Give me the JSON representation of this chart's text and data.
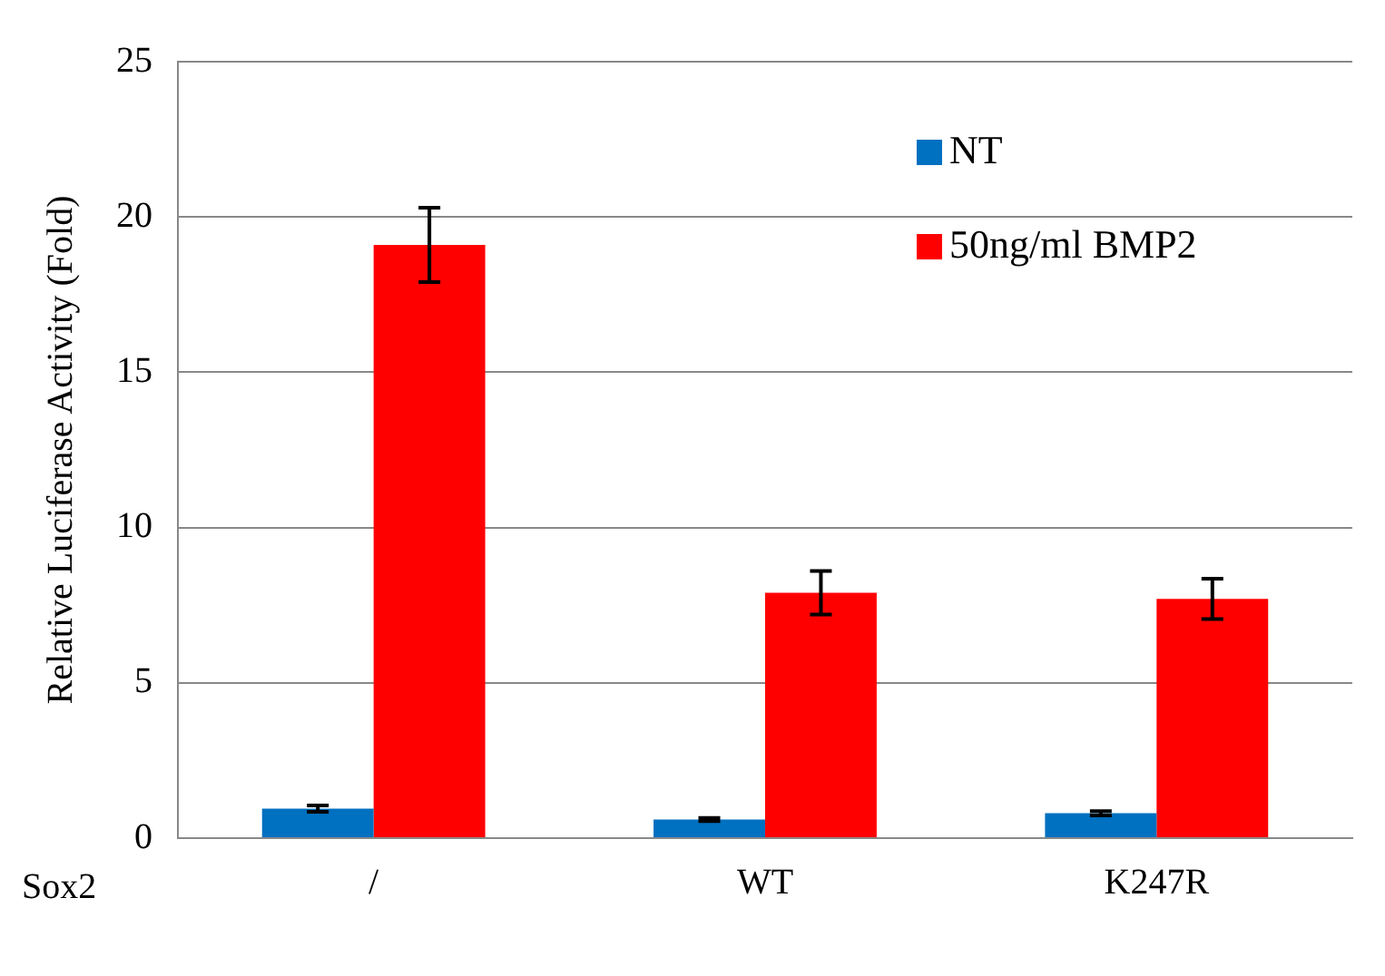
{
  "chart_data": {
    "type": "bar",
    "ylabel": "Relative Luciferase Activity (Fold)",
    "categories": [
      "/",
      "WT",
      "K247R"
    ],
    "series": [
      {
        "name": "NT",
        "color": "#0070c0",
        "values": [
          0.95,
          0.6,
          0.8
        ],
        "errors": [
          0.1,
          0.05,
          0.07
        ]
      },
      {
        "name": "50ng/ml BMP2",
        "color": "#ff0000",
        "values": [
          19.1,
          7.9,
          7.7
        ],
        "errors": [
          1.2,
          0.7,
          0.65
        ]
      }
    ],
    "ylim": [
      0,
      25
    ],
    "yticks": [
      0,
      5,
      10,
      15,
      20,
      25
    ],
    "grid": "y",
    "legend": "top right",
    "annotations": [
      "Sox2"
    ]
  }
}
